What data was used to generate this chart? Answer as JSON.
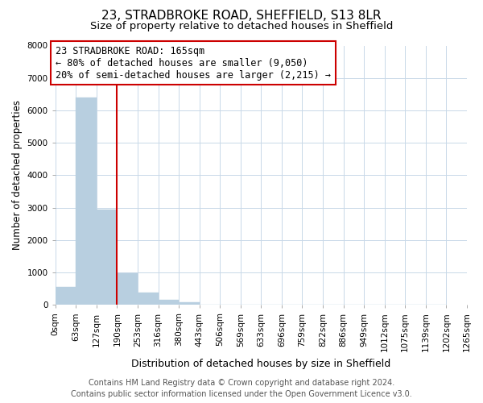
{
  "title": "23, STRADBROKE ROAD, SHEFFIELD, S13 8LR",
  "subtitle": "Size of property relative to detached houses in Sheffield",
  "xlabel": "Distribution of detached houses by size in Sheffield",
  "ylabel": "Number of detached properties",
  "bar_values": [
    560,
    6400,
    2930,
    990,
    380,
    165,
    80,
    0,
    0,
    0,
    0,
    0,
    0,
    0,
    0,
    0,
    0,
    0,
    0
  ],
  "bin_labels": [
    "0sqm",
    "63sqm",
    "127sqm",
    "190sqm",
    "253sqm",
    "316sqm",
    "380sqm",
    "443sqm",
    "506sqm",
    "569sqm",
    "633sqm",
    "696sqm",
    "759sqm",
    "822sqm",
    "886sqm",
    "949sqm",
    "1012sqm",
    "1075sqm",
    "1139sqm",
    "1202sqm",
    "1265sqm"
  ],
  "bar_color": "#b8cfe0",
  "bar_edge_color": "#b8cfe0",
  "vline_color": "#cc0000",
  "vline_x_bar_index": 3,
  "ylim": [
    0,
    8000
  ],
  "yticks": [
    0,
    1000,
    2000,
    3000,
    4000,
    5000,
    6000,
    7000,
    8000
  ],
  "annotation_title": "23 STRADBROKE ROAD: 165sqm",
  "annotation_line1": "← 80% of detached houses are smaller (9,050)",
  "annotation_line2": "20% of semi-detached houses are larger (2,215) →",
  "annotation_box_color": "#ffffff",
  "annotation_box_edge": "#cc0000",
  "footer_line1": "Contains HM Land Registry data © Crown copyright and database right 2024.",
  "footer_line2": "Contains public sector information licensed under the Open Government Licence v3.0.",
  "background_color": "#ffffff",
  "grid_color": "#c8d8e8",
  "title_fontsize": 11,
  "subtitle_fontsize": 9.5,
  "ylabel_fontsize": 8.5,
  "xlabel_fontsize": 9,
  "tick_fontsize": 7.5,
  "annotation_fontsize": 8.5,
  "footer_fontsize": 7
}
